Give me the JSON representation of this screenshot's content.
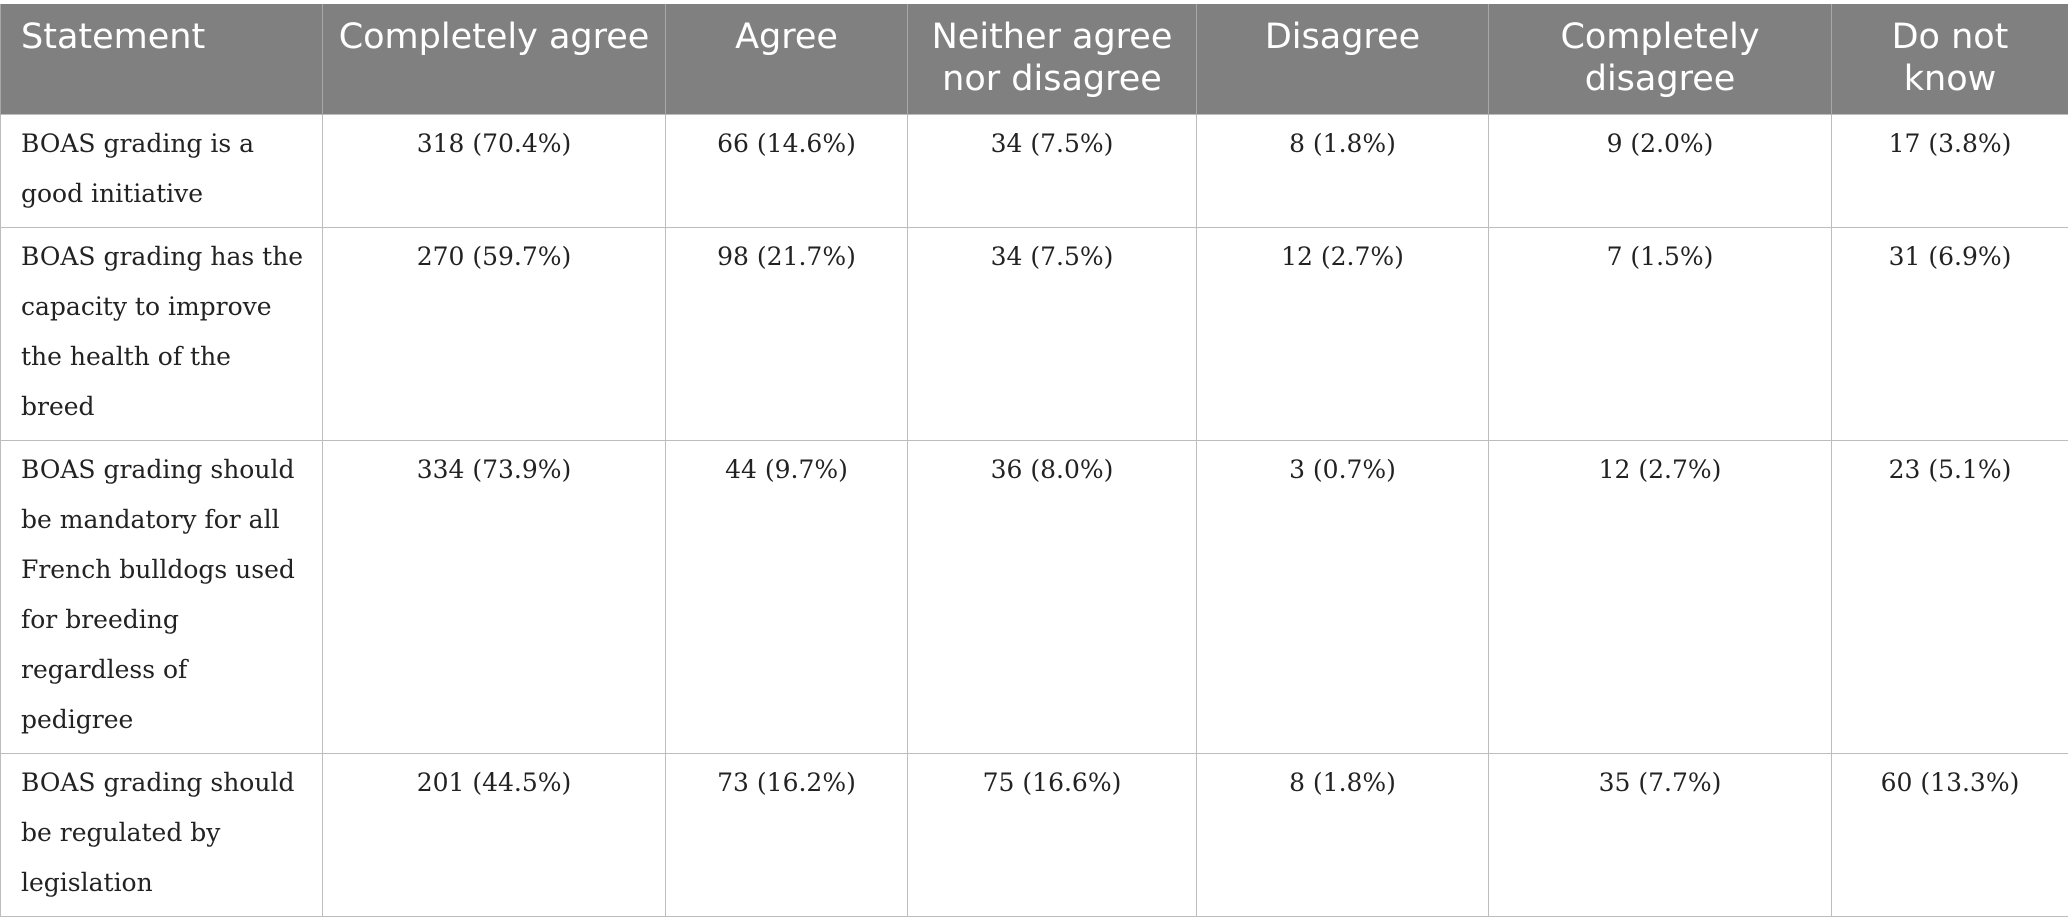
{
  "table": {
    "headers": [
      "Statement",
      "Completely agree",
      "Agree",
      "Neither agree nor disagree",
      "Disagree",
      "Completely disagree",
      "Do not know"
    ],
    "rows": [
      {
        "statement": "BOAS grading is a good initiative",
        "cells": [
          "318 (70.4%)",
          "66 (14.6%)",
          "34 (7.5%)",
          "8 (1.8%)",
          "9 (2.0%)",
          "17 (3.8%)"
        ]
      },
      {
        "statement": "BOAS grading has the capacity to improve the health of the breed",
        "cells": [
          "270 (59.7%)",
          "98 (21.7%)",
          "34 (7.5%)",
          "12 (2.7%)",
          "7 (1.5%)",
          "31 (6.9%)"
        ]
      },
      {
        "statement": "BOAS grading should be mandatory for all French bulldogs used for breeding regardless of pedigree",
        "cells": [
          "334 (73.9%)",
          "44 (9.7%)",
          "36 (8.0%)",
          "3 (0.7%)",
          "12 (2.7%)",
          "23 (5.1%)"
        ]
      },
      {
        "statement": "BOAS grading should be regulated by legislation",
        "cells": [
          "201 (44.5%)",
          "73 (16.2%)",
          "75 (16.6%)",
          "8 (1.8%)",
          "35 (7.7%)",
          "60 (13.3%)"
        ]
      }
    ]
  }
}
